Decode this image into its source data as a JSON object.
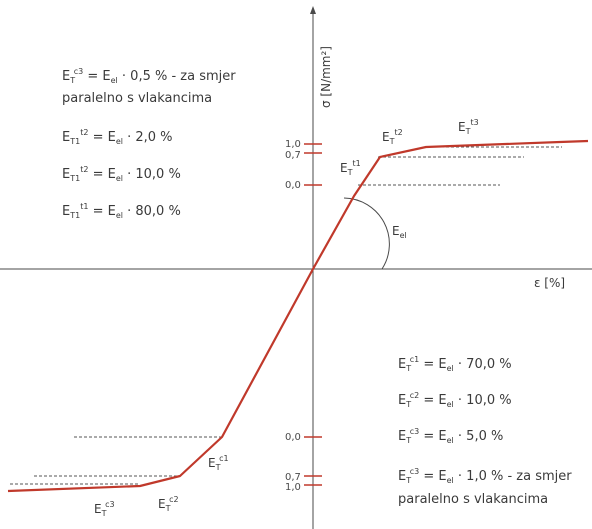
{
  "axes": {
    "y_label": "σ [N/mm²]",
    "x_label": "ε [%]"
  },
  "ticks": {
    "pos_1_0": "1,0",
    "pos_0_7": "0,7",
    "pos_0_0": "0,0",
    "neg_0_0": "0,0",
    "neg_0_7": "0,7",
    "neg_1_0": "1,0"
  },
  "curve_labels": {
    "Et11": {
      "base": "E",
      "sub": "T",
      "sup": "t1"
    },
    "Et12": {
      "base": "E",
      "sub": "T",
      "sup": "t2"
    },
    "Et13": {
      "base": "E",
      "sub": "T",
      "sup": "t3"
    },
    "Ec1": {
      "base": "E",
      "sub": "T",
      "sup": "c1"
    },
    "Ec2": {
      "base": "E",
      "sub": "T",
      "sup": "c2"
    },
    "Ec3": {
      "base": "E",
      "sub": "T",
      "sup": "c3"
    },
    "Eel": {
      "base": "E",
      "sub": "el"
    }
  },
  "tension_equations": {
    "line1": {
      "lhs_sup": "c3",
      "rhs": "· 0,5 % - za smjer"
    },
    "line1_cont": "paralelno s vlakancima",
    "line2": {
      "lhs_sup": "t2",
      "rhs": "· 2,0 %"
    },
    "line3": {
      "lhs_sup": "t2",
      "rhs": "· 10,0 %"
    },
    "line4": {
      "lhs_sup": "t1",
      "rhs": "· 80,0 %"
    }
  },
  "compression_equations": {
    "line1": {
      "lhs_sup": "c1",
      "rhs": "· 70,0 %"
    },
    "line2": {
      "lhs_sup": "c2",
      "rhs": "· 10,0 %"
    },
    "line3": {
      "lhs_sup": "c3",
      "rhs": "· 5,0 %"
    },
    "line4": {
      "lhs_sup": "c3",
      "rhs": "· 1,0 % - za smjer"
    },
    "line4_cont": "paralelno s vlakancima"
  },
  "colors": {
    "curve": "#c0392b",
    "axis": "#4a4a4a",
    "text": "#3a3a3a"
  }
}
